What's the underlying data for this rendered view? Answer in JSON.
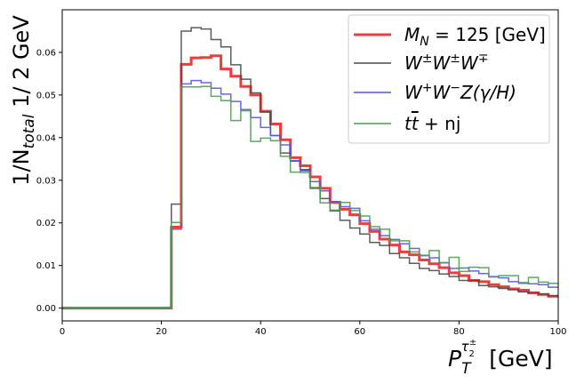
{
  "chart_data": {
    "type": "line",
    "xlabel": {
      "prefix": "P",
      "sub": "T",
      "sup": "τ",
      "supsub": "2",
      "supsup": "±",
      "unit": "[GeV]"
    },
    "ylabel": {
      "pre": "1/N",
      "sub": "total",
      "post": " 1/ 2 GeV"
    },
    "xlim": [
      0,
      100
    ],
    "ylim": [
      -0.003,
      0.07
    ],
    "x_ticks": [
      0,
      20,
      40,
      60,
      80,
      100
    ],
    "x_tick_labels": [
      "0",
      "20",
      "40",
      "60",
      "80",
      "100"
    ],
    "y_ticks": [
      0.0,
      0.01,
      0.02,
      0.03,
      0.04,
      0.05,
      0.06
    ],
    "y_tick_labels": [
      "0.00",
      "0.01",
      "0.02",
      "0.03",
      "0.04",
      "0.05",
      "0.06"
    ],
    "grid": false,
    "legend_position": "top-right",
    "bin_edges": [
      0,
      2,
      4,
      6,
      8,
      10,
      12,
      14,
      16,
      18,
      20,
      22,
      24,
      26,
      28,
      30,
      32,
      34,
      36,
      38,
      40,
      42,
      44,
      46,
      48,
      50,
      52,
      54,
      56,
      58,
      60,
      62,
      64,
      66,
      68,
      70,
      72,
      74,
      76,
      78,
      80,
      82,
      84,
      86,
      88,
      90,
      92,
      94,
      96,
      98,
      100
    ],
    "series": [
      {
        "name_parts": {
          "a": "M",
          "sub": "N",
          "b": " = 125 [GeV]"
        },
        "color": "#f03c3c",
        "width": 3,
        "values": [
          0,
          0,
          0,
          0,
          0,
          0,
          0,
          0,
          0,
          0,
          0,
          0.019,
          0.0572,
          0.0587,
          0.0588,
          0.0592,
          0.0561,
          0.0544,
          0.052,
          0.05,
          0.0462,
          0.0432,
          0.0395,
          0.0353,
          0.0334,
          0.0308,
          0.0281,
          0.0248,
          0.0232,
          0.0219,
          0.0198,
          0.018,
          0.0162,
          0.0148,
          0.0132,
          0.0125,
          0.0113,
          0.0104,
          0.0095,
          0.0083,
          0.0076,
          0.0065,
          0.0062,
          0.0055,
          0.005,
          0.0045,
          0.0042,
          0.0036,
          0.0032,
          0.0028
        ]
      },
      {
        "name_parts": {
          "a": "W",
          "sup1": "±",
          "b": "W",
          "sup2": "±",
          "c": "W",
          "sup3": "∓"
        },
        "color": "#4a4a4a",
        "width": 1.5,
        "values": [
          0,
          0,
          0,
          0,
          0,
          0,
          0,
          0,
          0,
          0,
          0,
          0.0244,
          0.065,
          0.0658,
          0.0655,
          0.063,
          0.0613,
          0.0571,
          0.0537,
          0.0505,
          0.046,
          0.0405,
          0.0364,
          0.0345,
          0.0325,
          0.0281,
          0.0257,
          0.0228,
          0.0206,
          0.0188,
          0.0174,
          0.0154,
          0.0147,
          0.0128,
          0.0118,
          0.0105,
          0.0093,
          0.0088,
          0.008,
          0.0074,
          0.0065,
          0.0065,
          0.0053,
          0.005,
          0.0046,
          0.0043,
          0.0038,
          0.0036,
          0.0033,
          0.0029
        ]
      },
      {
        "name_parts": {
          "a": "W",
          "sup1": "+",
          "b": "W",
          "sup2": "−",
          "c": "Z(γ/H)"
        },
        "color": "#5555e6",
        "width": 1.5,
        "values": [
          0,
          0,
          0,
          0,
          0,
          0,
          0,
          0,
          0,
          0,
          0,
          0.0185,
          0.0526,
          0.0534,
          0.0529,
          0.0516,
          0.0502,
          0.0485,
          0.0466,
          0.0447,
          0.0424,
          0.0405,
          0.0383,
          0.0346,
          0.0322,
          0.0297,
          0.0275,
          0.025,
          0.0238,
          0.0234,
          0.0205,
          0.0185,
          0.017,
          0.0161,
          0.0151,
          0.014,
          0.0123,
          0.0118,
          0.0106,
          0.0093,
          0.0094,
          0.0087,
          0.0081,
          0.0074,
          0.0071,
          0.0062,
          0.0058,
          0.0057,
          0.0055,
          0.0049
        ]
      },
      {
        "name_parts": {
          "a": "t",
          "bar": "t",
          "b": " + nj"
        },
        "color": "#4c9e4c",
        "width": 1.5,
        "values": [
          0,
          0,
          0,
          0,
          0,
          0,
          0,
          0,
          0,
          0,
          0,
          0.0201,
          0.0519,
          0.0519,
          0.052,
          0.0497,
          0.0487,
          0.044,
          0.0463,
          0.0391,
          0.0399,
          0.0393,
          0.0356,
          0.0319,
          0.0318,
          0.0283,
          0.0247,
          0.023,
          0.0248,
          0.0229,
          0.0216,
          0.0191,
          0.0185,
          0.0158,
          0.0158,
          0.0132,
          0.0124,
          0.0135,
          0.0107,
          0.0119,
          0.0086,
          0.0096,
          0.0095,
          0.0073,
          0.0076,
          0.0076,
          0.006,
          0.0072,
          0.0061,
          0.0058
        ]
      }
    ]
  }
}
